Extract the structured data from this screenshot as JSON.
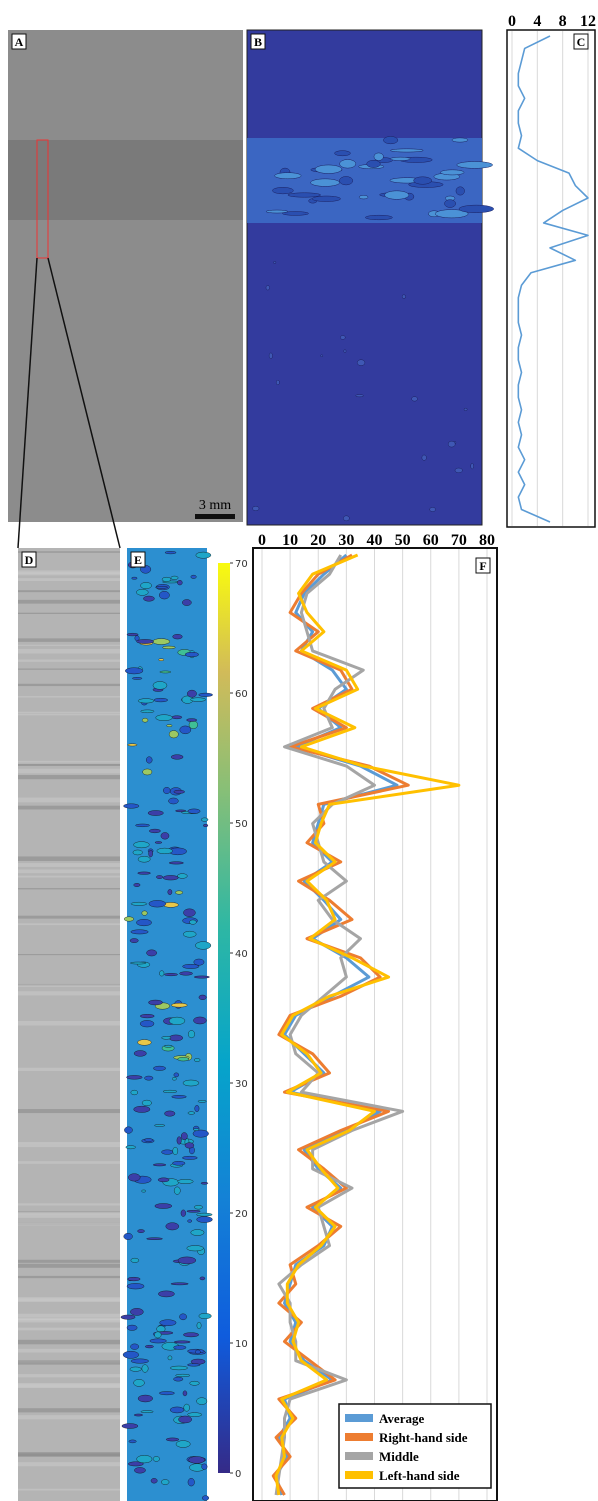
{
  "panels": {
    "labels": [
      "A",
      "B",
      "C",
      "D",
      "E",
      "F"
    ],
    "scale_bar": "3 mm"
  },
  "chart_data": [
    {
      "type": "profile",
      "xlim": [
        0,
        12
      ],
      "xticks": [
        0,
        4,
        8,
        12
      ],
      "grid": true,
      "color": "#5b9bd5",
      "values": [
        6,
        2,
        1.5,
        1,
        1,
        2,
        1,
        1,
        1.5,
        1,
        4,
        9,
        10,
        12,
        8,
        5,
        12,
        6,
        10,
        3,
        1.5,
        1,
        1,
        1,
        1.5,
        1,
        1,
        1.5,
        1,
        1,
        1.5,
        1,
        1.5,
        1,
        2,
        1,
        2,
        1,
        1.5,
        6
      ]
    },
    {
      "type": "colorbar",
      "ylim": [
        0,
        70
      ],
      "yticks": [
        0,
        10,
        20,
        30,
        40,
        50,
        60,
        70
      ]
    },
    {
      "type": "profile",
      "xlim": [
        0,
        80
      ],
      "xticks": [
        0,
        10,
        20,
        30,
        40,
        50,
        60,
        70,
        80
      ],
      "grid": true,
      "legend": "lower right",
      "series": [
        {
          "name": "Average",
          "color": "#5b9bd5",
          "values": [
            30,
            22,
            15,
            12,
            18,
            14,
            25,
            30,
            20,
            28,
            12,
            35,
            48,
            22,
            20,
            18,
            25,
            15,
            22,
            28,
            18,
            30,
            38,
            25,
            12,
            8,
            15,
            22,
            10,
            42,
            30,
            15,
            20,
            28,
            18,
            25,
            22,
            12,
            10,
            8,
            12,
            10,
            15,
            25,
            8,
            10,
            6,
            9,
            5,
            7
          ]
        },
        {
          "name": "Right-hand side",
          "color": "#ed7d31",
          "values": [
            32,
            20,
            14,
            10,
            20,
            12,
            28,
            32,
            18,
            30,
            10,
            38,
            52,
            20,
            22,
            16,
            28,
            13,
            24,
            32,
            16,
            35,
            42,
            28,
            10,
            6,
            18,
            24,
            8,
            45,
            28,
            13,
            22,
            30,
            16,
            28,
            20,
            10,
            12,
            6,
            14,
            8,
            17,
            26,
            6,
            12,
            5,
            10,
            4,
            8
          ]
        },
        {
          "name": "Middle",
          "color": "#a5a5a5",
          "values": [
            28,
            24,
            16,
            14,
            16,
            18,
            36,
            26,
            22,
            25,
            8,
            30,
            40,
            25,
            18,
            20,
            22,
            30,
            20,
            25,
            35,
            28,
            30,
            22,
            14,
            10,
            12,
            20,
            14,
            50,
            32,
            18,
            18,
            32,
            20,
            22,
            24,
            14,
            6,
            10,
            10,
            12,
            12,
            30,
            10,
            8,
            8,
            7,
            6,
            5
          ]
        },
        {
          "name": "Left-hand side",
          "color": "#ffc000",
          "values": [
            34,
            18,
            13,
            16,
            22,
            14,
            30,
            34,
            19,
            33,
            14,
            36,
            70,
            24,
            21,
            19,
            26,
            16,
            23,
            26,
            17,
            32,
            45,
            24,
            11,
            7,
            16,
            21,
            9,
            40,
            31,
            16,
            21,
            27,
            19,
            26,
            21,
            13,
            9,
            9,
            13,
            11,
            14,
            23,
            7,
            11,
            7,
            8,
            5,
            6
          ]
        }
      ]
    }
  ]
}
